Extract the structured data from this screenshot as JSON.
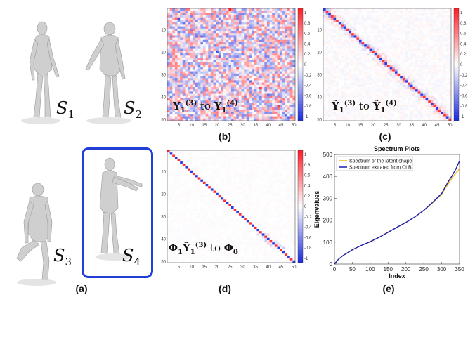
{
  "panel_labels": {
    "a": "(a)",
    "b": "(b)",
    "c": "(c)",
    "d": "(d)",
    "e": "(e)"
  },
  "shapes": {
    "s1": {
      "base": "S",
      "sub": "1"
    },
    "s2": {
      "base": "S",
      "sub": "2"
    },
    "s3": {
      "base": "S",
      "sub": "3"
    },
    "s4": {
      "base": "S",
      "sub": "4",
      "highlighted": true,
      "highlight_color": "#1f3fd6"
    }
  },
  "matrix_labels": {
    "b": {
      "left": "Y",
      "left_sub": "1",
      "left_sup": "(3)",
      "connector": " to ",
      "right": "Y",
      "right_sub": "1",
      "right_sup": "(4)"
    },
    "c": {
      "left": "Ỹ",
      "left_sub": "1",
      "left_sup": "(3)",
      "connector": " to ",
      "right": "Ỹ",
      "right_sub": "1",
      "right_sup": "(4)"
    },
    "d": {
      "pre": "Φ",
      "pre_sub": "1",
      "left": "Ỹ",
      "left_sub": "1",
      "left_sup": "(3)",
      "connector": " to ",
      "right": "Φ",
      "right_sub": "0"
    }
  },
  "colors": {
    "positive": "#e8202a",
    "negative": "#1f2fe0",
    "neutral": "#ffffff",
    "series_latent": "#f2b81a",
    "series_clb": "#1a1fb0"
  },
  "heatmap_axes": {
    "y_ticks": [
      "10",
      "20",
      "30",
      "40",
      "50"
    ],
    "x_ticks": [
      "5",
      "10",
      "15",
      "20",
      "25",
      "30",
      "35",
      "40",
      "45",
      "50"
    ],
    "colorbar_ticks": [
      "1",
      "0.8",
      "0.6",
      "0.4",
      "0.2",
      "0",
      "-0.2",
      "-0.4",
      "-0.6",
      "-0.8",
      "-1"
    ]
  },
  "chart_data": [
    {
      "type": "heatmap",
      "panel": "(b)",
      "size": 50,
      "pattern": "noisy",
      "zlim": [
        -1,
        1
      ]
    },
    {
      "type": "heatmap",
      "panel": "(c)",
      "size": 50,
      "pattern": "near-diagonal",
      "zlim": [
        -1,
        1
      ]
    },
    {
      "type": "heatmap",
      "panel": "(d)",
      "size": 50,
      "pattern": "diagonal",
      "zlim": [
        -1,
        1
      ]
    },
    {
      "type": "line",
      "panel": "(e)",
      "title": "Spectrum Plots",
      "xlabel": "Index",
      "ylabel": "Eigenvalues",
      "xlim": [
        0,
        350
      ],
      "ylim": [
        0,
        500
      ],
      "x_ticks": [
        0,
        50,
        100,
        150,
        200,
        250,
        300,
        350
      ],
      "y_ticks": [
        0,
        100,
        200,
        300,
        400,
        500
      ],
      "legend_position": "top-left",
      "x": [
        0,
        10,
        25,
        50,
        75,
        100,
        125,
        150,
        175,
        200,
        225,
        250,
        275,
        300,
        310,
        320,
        330,
        340,
        350
      ],
      "series": [
        {
          "name": "Spectrum of the latent shape",
          "color": "#f2b81a",
          "values": [
            0,
            20,
            40,
            65,
            85,
            102,
            122,
            145,
            168,
            190,
            215,
            245,
            280,
            318,
            345,
            370,
            395,
            415,
            435
          ]
        },
        {
          "name": "Spectrum extrated from CLB",
          "color": "#1a1fb0",
          "values": [
            0,
            20,
            40,
            65,
            85,
            102,
            122,
            145,
            168,
            190,
            215,
            245,
            282,
            322,
            352,
            380,
            405,
            435,
            470
          ]
        }
      ]
    }
  ]
}
